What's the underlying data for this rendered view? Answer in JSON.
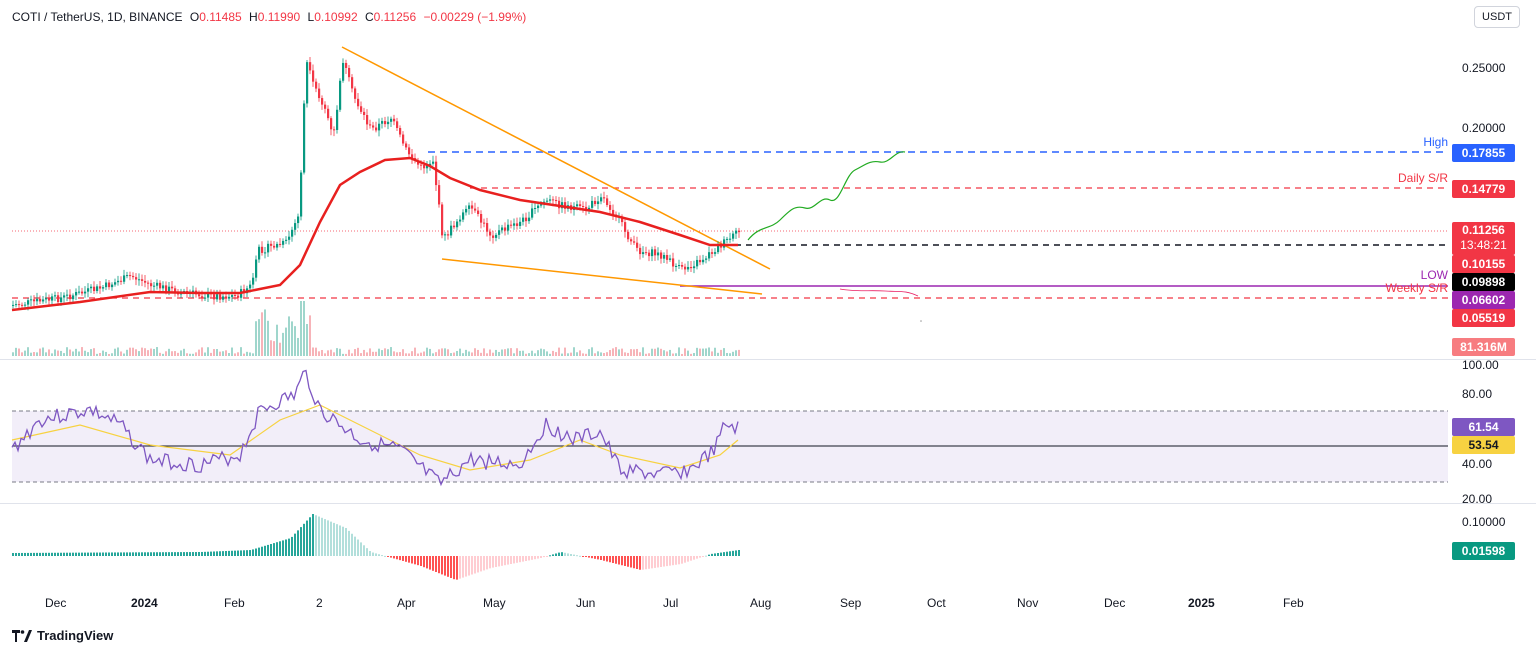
{
  "header": {
    "symbol": "COTI / TetherUS, 1D, BINANCE",
    "open_k": "O",
    "open": "0.11485",
    "high_k": "H",
    "high": "0.11990",
    "low_k": "L",
    "low": "0.10992",
    "close_k": "C",
    "close": "0.11256",
    "change": "−0.00229 (−1.99%)"
  },
  "currency": "USDT",
  "price_axis": [
    "0.25000",
    "0.20000"
  ],
  "rsi_axis": [
    "100.00",
    "80.00",
    "40.00",
    "20.00"
  ],
  "macd_axis": [
    "0.10000"
  ],
  "levels": {
    "high_label": "High",
    "high_value": "0.17855",
    "daily_label": "Daily S/R",
    "daily_value": "0.14779",
    "price_value": "0.11256",
    "countdown": "13:48:21",
    "level_red": "0.10155",
    "level_black": "0.09898",
    "low_label": "LOW",
    "weekly_label": "Weekly S/R",
    "low_value": "0.06602",
    "weekly_value": "0.05519",
    "volume": "81.316M"
  },
  "rsi_values": {
    "rsi": "61.54",
    "ma": "53.54"
  },
  "macd_value": "0.01598",
  "x_axis": [
    "Dec",
    "2024",
    "Feb",
    "2",
    "Apr",
    "May",
    "Jun",
    "Jul",
    "Aug",
    "Sep",
    "Oct",
    "Nov",
    "Dec",
    "2025",
    "Feb"
  ],
  "brand": "TradingView",
  "colors": {
    "up": "#089981",
    "down": "#f23645",
    "ma": "#e8201f",
    "rsi": "#7e57c2",
    "rsi_ma": "#f7d241",
    "wedge": "#ff9800",
    "high": "#2962ff",
    "low": "#9c27b0"
  }
}
